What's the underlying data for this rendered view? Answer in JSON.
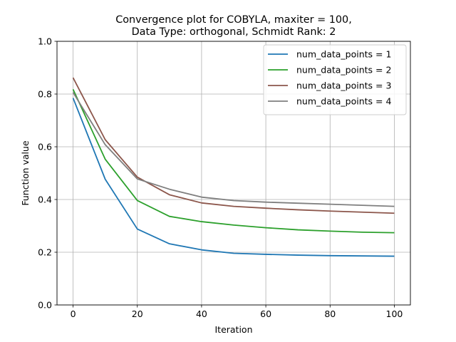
{
  "chart_data": {
    "type": "line",
    "title_line1": "Convergence plot for COBYLA, maxiter = 100,",
    "title_line2": "Data Type: orthogonal, Schmidt Rank: 2",
    "xlabel": "Iteration",
    "ylabel": "Function value",
    "xlim": [
      -5,
      105
    ],
    "ylim": [
      0,
      1
    ],
    "x_ticks": [
      0,
      20,
      40,
      60,
      80,
      100
    ],
    "x_tick_labels": [
      "0",
      "20",
      "40",
      "60",
      "80",
      "100"
    ],
    "y_ticks": [
      0,
      0.2,
      0.4,
      0.6,
      0.8,
      1.0
    ],
    "y_tick_labels": [
      "0.0",
      "0.2",
      "0.4",
      "0.6",
      "0.8",
      "1.0"
    ],
    "grid": true,
    "legend_position": "top-right",
    "x": [
      0,
      10,
      20,
      30,
      40,
      50,
      60,
      70,
      80,
      90,
      100
    ],
    "series": [
      {
        "name": "num_data_points = 1",
        "color": "#1f77b4",
        "values": [
          0.785,
          0.477,
          0.288,
          0.232,
          0.209,
          0.196,
          0.192,
          0.189,
          0.187,
          0.186,
          0.185
        ]
      },
      {
        "name": "num_data_points = 2",
        "color": "#2ca02c",
        "values": [
          0.818,
          0.553,
          0.396,
          0.336,
          0.316,
          0.303,
          0.293,
          0.285,
          0.28,
          0.276,
          0.274
        ]
      },
      {
        "name": "num_data_points = 3",
        "color": "#8c564b",
        "values": [
          0.862,
          0.627,
          0.485,
          0.418,
          0.387,
          0.374,
          0.367,
          0.361,
          0.356,
          0.352,
          0.348
        ]
      },
      {
        "name": "num_data_points = 4",
        "color": "#7f7f7f",
        "values": [
          0.806,
          0.608,
          0.478,
          0.439,
          0.409,
          0.396,
          0.39,
          0.386,
          0.382,
          0.378,
          0.374
        ]
      }
    ]
  }
}
